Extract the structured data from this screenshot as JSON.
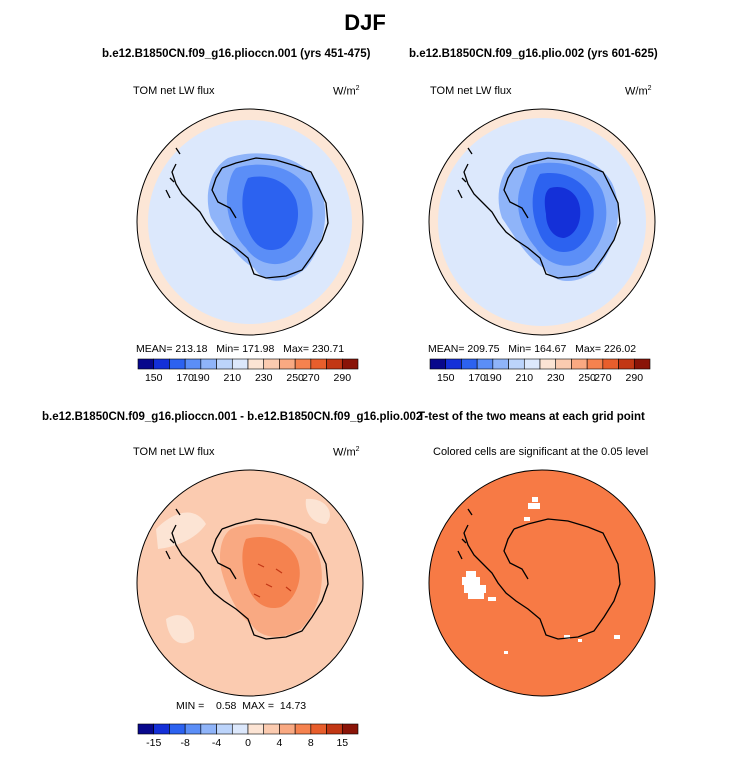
{
  "title": "DJF",
  "colors": {
    "blues": [
      "#08088c",
      "#1430d8",
      "#2c62f0",
      "#5b8ef7",
      "#8fb4f9",
      "#bcd4fb",
      "#dce8fc"
    ],
    "warm": [
      "#fce4d4",
      "#fbcbb0",
      "#f9a982",
      "#f5824f",
      "#e85e2c",
      "#c23714",
      "#8a1408"
    ],
    "land_outline": "#000000",
    "significant": "#f77a45"
  },
  "panels": [
    {
      "title": "b.e12.B1850CN.f09_g16.plioccn.001 (yrs 451-475)",
      "variable": "TOM net LW flux",
      "units": "W/m",
      "units_sup": "2",
      "stats_text": "MEAN= 213.18   Min= 171.98   Max= 230.71",
      "colorbar_labels": [
        "150",
        "170",
        "190",
        "210",
        "230",
        "250",
        "270",
        "290"
      ]
    },
    {
      "title": "b.e12.B1850CN.f09_g16.plio.002 (yrs 601-625)",
      "variable": "TOM net LW flux",
      "units": "W/m",
      "units_sup": "2",
      "stats_text": "MEAN= 209.75   Min= 164.67   Max= 226.02",
      "colorbar_labels": [
        "150",
        "170",
        "190",
        "210",
        "230",
        "250",
        "270",
        "290"
      ]
    },
    {
      "title": "b.e12.B1850CN.f09_g16.plioccn.001 - b.e12.B1850CN.f09_g16.plio.002",
      "variable": "TOM net LW flux",
      "units": "W/m",
      "units_sup": "2",
      "stats_text": "MIN =    0.58  MAX =  14.73",
      "colorbar_labels": [
        "-15",
        "-8",
        "-4",
        "0",
        "4",
        "8",
        "15"
      ]
    },
    {
      "title": "T-test of the two means at each grid point",
      "variable": "Colored cells are significant at the 0.05 level"
    }
  ],
  "chart_data": [
    {
      "type": "heatmap",
      "projection": "south-polar-stereographic",
      "title": "b.e12.B1850CN.f09_g16.plioccn.001 (yrs 451-475)",
      "variable": "TOM net LW flux",
      "units": "W/m2",
      "mean": 213.18,
      "min": 171.98,
      "max": 230.71,
      "color_levels": [
        150,
        170,
        190,
        210,
        230,
        250,
        270,
        290
      ]
    },
    {
      "type": "heatmap",
      "projection": "south-polar-stereographic",
      "title": "b.e12.B1850CN.f09_g16.plio.002 (yrs 601-625)",
      "variable": "TOM net LW flux",
      "units": "W/m2",
      "mean": 209.75,
      "min": 164.67,
      "max": 226.02,
      "color_levels": [
        150,
        170,
        190,
        210,
        230,
        250,
        270,
        290
      ]
    },
    {
      "type": "heatmap",
      "projection": "south-polar-stereographic",
      "title": "b.e12.B1850CN.f09_g16.plioccn.001 - b.e12.B1850CN.f09_g16.plio.002",
      "variable": "TOM net LW flux",
      "units": "W/m2",
      "min": 0.58,
      "max": 14.73,
      "color_levels": [
        -15,
        -8,
        -4,
        0,
        4,
        8,
        15
      ]
    },
    {
      "type": "heatmap",
      "projection": "south-polar-stereographic",
      "title": "T-test of the two means at each grid point",
      "subtitle": "Colored cells are significant at the 0.05 level",
      "significance_level": 0.05
    }
  ]
}
